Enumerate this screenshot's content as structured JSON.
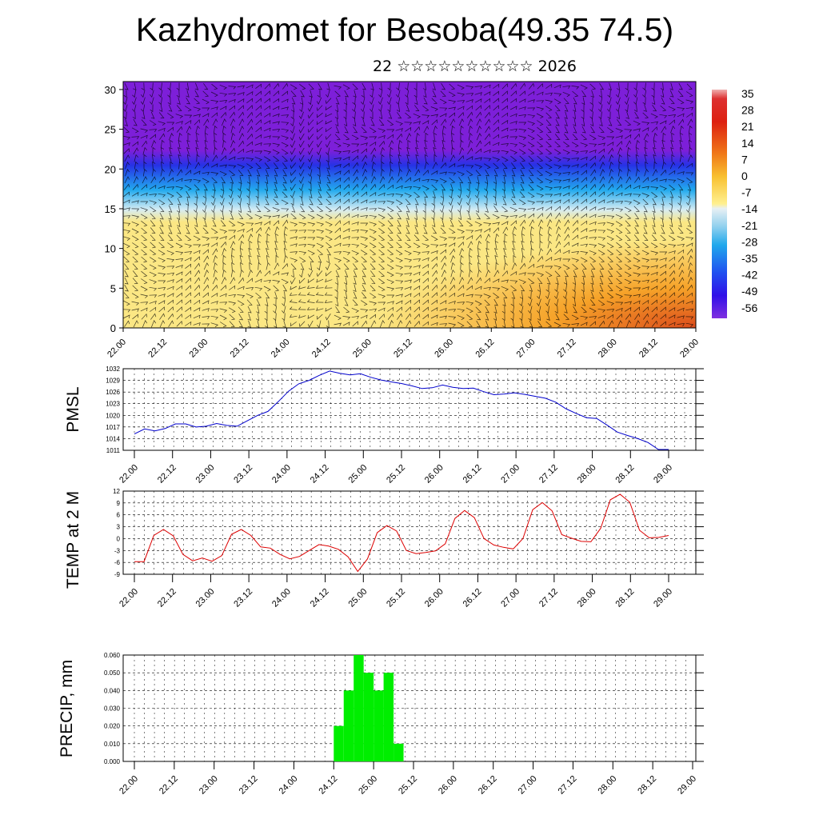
{
  "header": {
    "title": "Kazhydromet for Besoba(49.35 74.5)",
    "subtitle": "22 ☆☆☆☆☆☆☆☆☆☆ 2026"
  },
  "chart_data": [
    {
      "type": "heatmap",
      "title": "",
      "xlabel": "",
      "ylabel": "",
      "x_ticks": [
        "22.00",
        "22.12",
        "23.00",
        "23.12",
        "24.00",
        "24.12",
        "25.00",
        "25.12",
        "26.00",
        "26.12",
        "27.00",
        "27.12",
        "28.00",
        "28.12",
        "29.00"
      ],
      "ylim": [
        0,
        31
      ],
      "y_ticks": [
        0,
        5,
        10,
        15,
        20,
        25,
        30
      ],
      "colorbar_ticks": [
        "35",
        "28",
        "21",
        "14",
        "7",
        "0",
        "-7",
        "-14",
        "-21",
        "-28",
        "-35",
        "-42",
        "-49",
        "-56"
      ],
      "colorbar_range": [
        -60,
        38
      ],
      "colors": {
        "cold": "#7d1fd9",
        "blue": "#2632e6",
        "cyan": "#22aaee",
        "pale": "#d6ecf3",
        "yellow": "#fbe784",
        "orange": "#f59a1e",
        "red": "#d83a10"
      },
      "overlay": "wind barbs"
    },
    {
      "type": "line",
      "title": "",
      "xlabel": "",
      "ylabel": "PMSL",
      "ylim": [
        1011,
        1032
      ],
      "y_ticks": [
        1011,
        1014,
        1017,
        1020,
        1023,
        1026,
        1029,
        1032
      ],
      "x_ticks": [
        "22.00",
        "22.12",
        "23.00",
        "23.12",
        "24.00",
        "24.12",
        "25.00",
        "25.12",
        "26.00",
        "26.12",
        "27.00",
        "27.12",
        "28.00",
        "28.12",
        "29.00"
      ],
      "color": "#0000cc",
      "series": [
        {
          "values": [
            1015.2,
            1016.5,
            1016,
            1016.6,
            1017.8,
            1017.8,
            1017,
            1017.2,
            1017.9,
            1017.4,
            1017.2,
            1018.6,
            1020,
            1021,
            1023.5,
            1026.2,
            1028.1,
            1029,
            1030.3,
            1031.4,
            1030.8,
            1030.4,
            1030.7,
            1029.8,
            1029.1,
            1028.6,
            1028.2,
            1027.6,
            1026.9,
            1027.1,
            1027.8,
            1027.2,
            1026.9,
            1027,
            1026.1,
            1025.3,
            1025.5,
            1025.8,
            1025.4,
            1024.9,
            1024.4,
            1023.4,
            1021.7,
            1020.5,
            1019.4,
            1019.2,
            1017.5,
            1015.7,
            1014.8,
            1014,
            1013,
            1011.2,
            1011.2
          ]
        }
      ]
    },
    {
      "type": "line",
      "title": "",
      "xlabel": "",
      "ylabel": "TEMP at 2 M",
      "ylim": [
        -9,
        12
      ],
      "y_ticks": [
        -9,
        -6,
        -3,
        0,
        3,
        6,
        9,
        12
      ],
      "x_ticks": [
        "22.00",
        "22.12",
        "23.00",
        "23.12",
        "24.00",
        "24.12",
        "25.00",
        "25.12",
        "26.00",
        "26.12",
        "27.00",
        "27.12",
        "28.00",
        "28.12",
        "29.00"
      ],
      "color": "#dd0000",
      "series": [
        {
          "values": [
            -5.8,
            -5.8,
            0.8,
            2.3,
            0.7,
            -4,
            -5.6,
            -4.9,
            -5.7,
            -4.3,
            1.1,
            2.3,
            0.8,
            -2.1,
            -2.4,
            -4,
            -5.1,
            -4.5,
            -3,
            -1.5,
            -1.9,
            -2.7,
            -4.6,
            -8.3,
            -5.1,
            1.5,
            3.3,
            1.9,
            -3,
            -3.8,
            -3.5,
            -3.1,
            -1.3,
            5.1,
            7.1,
            5.3,
            0,
            -1.6,
            -2.2,
            -2.6,
            0,
            7.3,
            9.1,
            7,
            1,
            0.1,
            -0.7,
            -0.8,
            2.6,
            9.8,
            11.2,
            9.2,
            2.1,
            0.2,
            0.3,
            0.8
          ]
        }
      ]
    },
    {
      "type": "bar",
      "title": "",
      "xlabel": "",
      "ylabel": "PRECIP, mm",
      "ylim": [
        0,
        0.06
      ],
      "y_ticks": [
        "0.000",
        "0.010",
        "0.020",
        "0.030",
        "0.040",
        "0.050",
        "0.060"
      ],
      "x_ticks": [
        "22.00",
        "22.12",
        "23.00",
        "23.12",
        "24.00",
        "24.12",
        "25.00",
        "25.12",
        "26.00",
        "26.12",
        "27.00",
        "27.12",
        "28.00",
        "28.12",
        "29.00"
      ],
      "color": "#00ee00",
      "bars": [
        {
          "start": 20,
          "end": 21,
          "value": 0.02
        },
        {
          "start": 21,
          "end": 22,
          "value": 0.04
        },
        {
          "start": 22,
          "end": 23,
          "value": 0.06
        },
        {
          "start": 23,
          "end": 24,
          "value": 0.05
        },
        {
          "start": 24,
          "end": 25,
          "value": 0.04
        },
        {
          "start": 25,
          "end": 26,
          "value": 0.05
        },
        {
          "start": 26,
          "end": 27,
          "value": 0.01
        }
      ]
    }
  ]
}
